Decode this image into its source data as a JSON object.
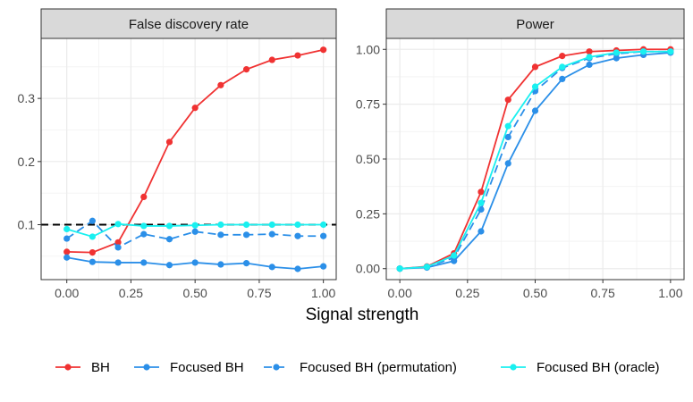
{
  "chart_data": {
    "type": "line",
    "xlabel": "Signal strength",
    "x": [
      0,
      0.1,
      0.2,
      0.3,
      0.4,
      0.5,
      0.6,
      0.7,
      0.8,
      0.9,
      1.0
    ],
    "colors": {
      "BH": "#f03232",
      "Focused BH": "#2b8fe8",
      "Focused BH (permutation)": "#2b8fe8",
      "Focused BH (oracle)": "#19f0f0"
    },
    "legend": [
      "BH",
      "Focused BH",
      "Focused BH (permutation)",
      "Focused BH (oracle)"
    ],
    "panels": [
      {
        "title": "False discovery rate",
        "xlim": [
          -0.1,
          1.05
        ],
        "ylim": [
          0.013,
          0.395
        ],
        "xticks": [
          0,
          0.25,
          0.5,
          0.75,
          1
        ],
        "xtick_labels": [
          "0.00",
          "0.25",
          "0.50",
          "0.75",
          "1.00"
        ],
        "yticks": [
          0.1,
          0.2,
          0.3
        ],
        "ytick_labels": [
          "0.1",
          "0.2",
          "0.3"
        ],
        "reference_line": 0.1,
        "series": [
          {
            "name": "BH",
            "values": [
              0.057,
              0.056,
              0.072,
              0.144,
              0.231,
              0.285,
              0.321,
              0.346,
              0.361,
              0.368,
              0.377
            ]
          },
          {
            "name": "Focused BH",
            "values": [
              0.048,
              0.041,
              0.04,
              0.04,
              0.036,
              0.04,
              0.037,
              0.039,
              0.033,
              0.03,
              0.034
            ]
          },
          {
            "name": "Focused BH (permutation)",
            "values": [
              0.078,
              0.106,
              0.064,
              0.085,
              0.077,
              0.089,
              0.084,
              0.084,
              0.085,
              0.082,
              0.082
            ]
          },
          {
            "name": "Focused BH (oracle)",
            "values": [
              0.093,
              0.081,
              0.101,
              0.098,
              0.098,
              0.099,
              0.1,
              0.1,
              0.1,
              0.1,
              0.1
            ]
          }
        ]
      },
      {
        "title": "Power",
        "xlim": [
          -0.05,
          1.05
        ],
        "ylim": [
          -0.05,
          1.05
        ],
        "xticks": [
          0,
          0.25,
          0.5,
          0.75,
          1
        ],
        "xtick_labels": [
          "0.00",
          "0.25",
          "0.50",
          "0.75",
          "1.00"
        ],
        "yticks": [
          0,
          0.25,
          0.5,
          0.75,
          1
        ],
        "ytick_labels": [
          "0.00",
          "0.25",
          "0.50",
          "0.75",
          "1.00"
        ],
        "series": [
          {
            "name": "BH",
            "values": [
              0.0,
              0.01,
              0.07,
              0.35,
              0.77,
              0.92,
              0.97,
              0.99,
              0.995,
              1.0,
              1.0
            ]
          },
          {
            "name": "Focused BH",
            "values": [
              0.0,
              0.005,
              0.035,
              0.17,
              0.48,
              0.72,
              0.865,
              0.93,
              0.96,
              0.975,
              0.985
            ]
          },
          {
            "name": "Focused BH (permutation)",
            "values": [
              0.0,
              0.008,
              0.05,
              0.27,
              0.6,
              0.81,
              0.915,
              0.96,
              0.98,
              0.99,
              0.99
            ]
          },
          {
            "name": "Focused BH (oracle)",
            "values": [
              0.0,
              0.008,
              0.06,
              0.3,
              0.65,
              0.83,
              0.92,
              0.965,
              0.985,
              0.99,
              0.99
            ]
          }
        ]
      }
    ]
  }
}
